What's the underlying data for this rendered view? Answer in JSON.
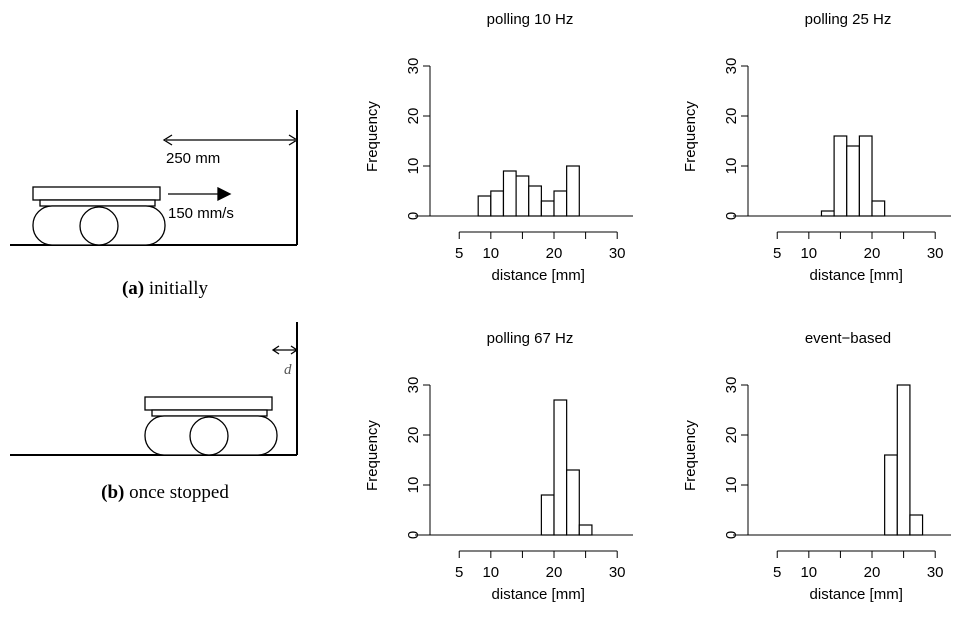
{
  "chart_data": [
    {
      "type": "histogram",
      "title": "polling 10 Hz",
      "xlabel": "distance [mm]",
      "ylabel": "Frequency",
      "bins": [
        8,
        10,
        12,
        14,
        16,
        18,
        20,
        22,
        24
      ],
      "values": [
        4,
        5,
        9,
        8,
        6,
        3,
        5,
        10
      ],
      "color": "#ffffff",
      "edgecolor": "#000000",
      "xlim": [
        -2,
        32.5
      ],
      "ylim": [
        0,
        35
      ],
      "xticks": [
        5,
        10,
        {
          "value": 15,
          "label": null
        },
        20,
        {
          "value": 25,
          "label": null
        },
        30
      ],
      "yticks": [
        0,
        10,
        20,
        30
      ]
    },
    {
      "type": "histogram",
      "title": "polling 25 Hz",
      "xlabel": "distance [mm]",
      "ylabel": "Frequency",
      "bins": [
        12,
        14,
        16,
        18,
        20,
        22
      ],
      "values": [
        1,
        16,
        14,
        16,
        3
      ],
      "color": "#ffffff",
      "edgecolor": "#000000",
      "xlim": [
        -2,
        32.5
      ],
      "ylim": [
        0,
        35
      ],
      "xticks": [
        5,
        10,
        {
          "value": 15,
          "label": null
        },
        20,
        {
          "value": 25,
          "label": null
        },
        30
      ],
      "yticks": [
        0,
        10,
        20,
        30
      ]
    },
    {
      "type": "histogram",
      "title": "polling 67 Hz",
      "xlabel": "distance [mm]",
      "ylabel": "Frequency",
      "bins": [
        18,
        20,
        22,
        24,
        26
      ],
      "values": [
        8,
        27,
        13,
        2
      ],
      "color": "#ffffff",
      "edgecolor": "#000000",
      "xlim": [
        -2,
        32.5
      ],
      "ylim": [
        0,
        35
      ],
      "xticks": [
        5,
        10,
        {
          "value": 15,
          "label": null
        },
        20,
        {
          "value": 25,
          "label": null
        },
        30
      ],
      "yticks": [
        0,
        10,
        20,
        30
      ]
    },
    {
      "type": "histogram",
      "title": "event−based",
      "xlabel": "distance [mm]",
      "ylabel": "Frequency",
      "bins": [
        22,
        24,
        26,
        28
      ],
      "values": [
        16,
        30,
        4
      ],
      "color": "#ffffff",
      "edgecolor": "#000000",
      "xlim": [
        -2,
        32.5
      ],
      "ylim": [
        0,
        35
      ],
      "xticks": [
        5,
        10,
        {
          "value": 15,
          "label": null
        },
        20,
        {
          "value": 25,
          "label": null
        },
        30
      ],
      "yticks": [
        0,
        10,
        20,
        30
      ]
    }
  ],
  "diagram": {
    "a": {
      "distance": "250 mm",
      "speed": "150 mm/s",
      "label": "(a)",
      "caption": "initially"
    },
    "b": {
      "gap": "d",
      "label": "(b)",
      "caption": "once stopped"
    }
  }
}
